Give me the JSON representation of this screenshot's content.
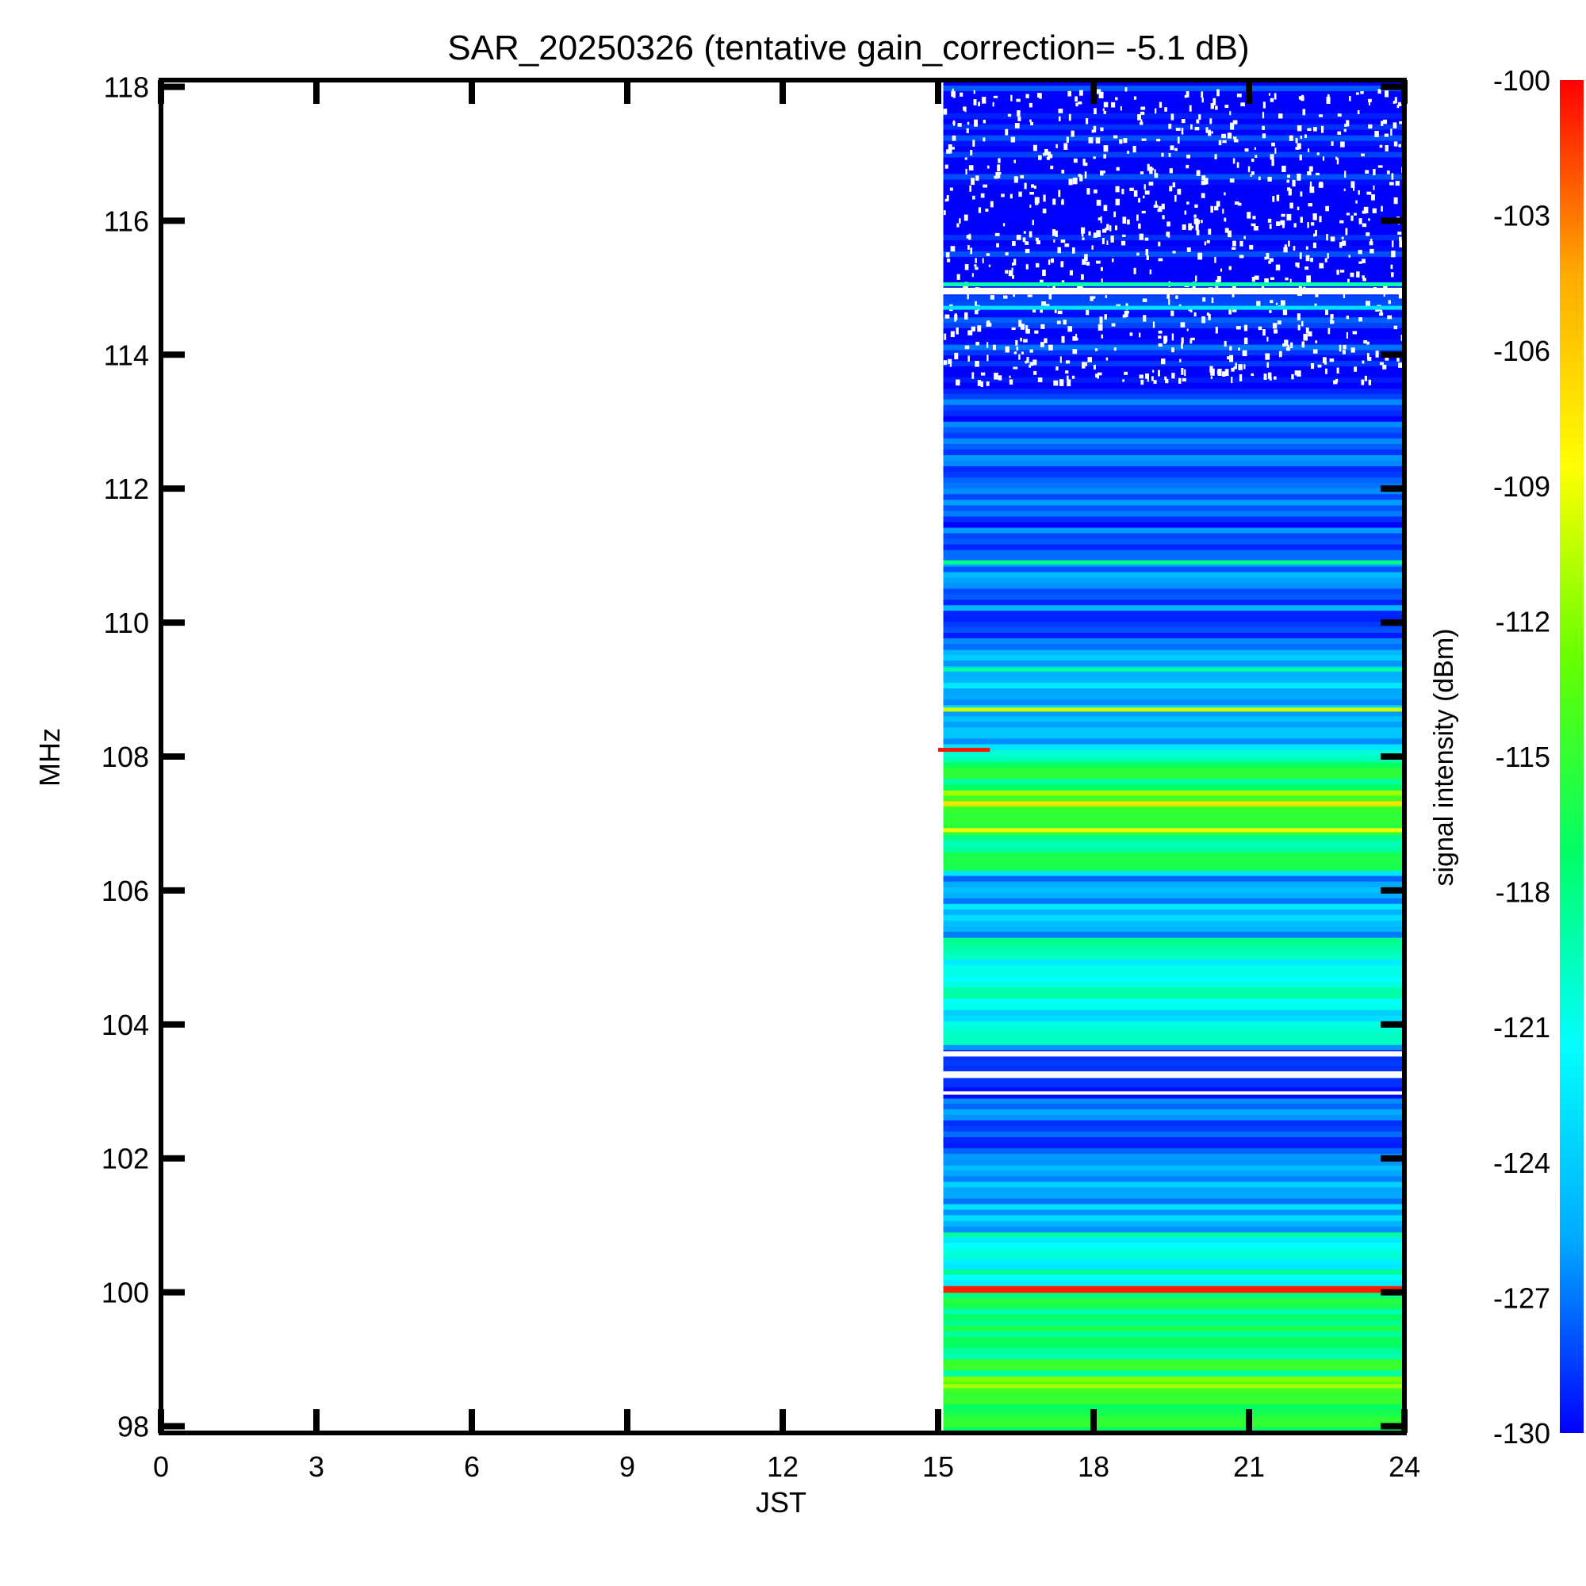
{
  "chart_data": {
    "type": "heatmap",
    "title": "SAR_20250326 (tentative gain_correction= -5.1 dB)",
    "xlabel": "JST",
    "ylabel": "MHz",
    "xlim": [
      0,
      24
    ],
    "ylim": [
      97.9,
      118.1
    ],
    "x_ticks": [
      "0",
      "3",
      "6",
      "9",
      "12",
      "15",
      "18",
      "21",
      "24"
    ],
    "x_tick_values": [
      0,
      3,
      6,
      9,
      12,
      15,
      18,
      21,
      24
    ],
    "y_ticks": [
      "98",
      "100",
      "102",
      "104",
      "106",
      "108",
      "110",
      "112",
      "114",
      "116",
      "118"
    ],
    "y_tick_values": [
      98,
      100,
      102,
      104,
      106,
      108,
      110,
      112,
      114,
      116,
      118
    ],
    "data_time_range": [
      15.1,
      24
    ],
    "colorbar": {
      "label": "signal intensity (dBm)",
      "range": [
        -130,
        -100
      ],
      "ticks": [
        "-100",
        "-103",
        "-106",
        "-109",
        "-112",
        "-115",
        "-118",
        "-121",
        "-124",
        "-127",
        "-130"
      ],
      "tick_values": [
        -100,
        -103,
        -106,
        -109,
        -112,
        -115,
        -118,
        -121,
        -124,
        -127,
        -130
      ],
      "colors": [
        "#0000ff",
        "#00aaff",
        "#00ffff",
        "#00ff66",
        "#66ff00",
        "#ffff00",
        "#ffaa00",
        "#ff0000"
      ]
    },
    "bands": [
      {
        "f0": 97.9,
        "f1": 98.5,
        "dbm": -115
      },
      {
        "f0": 98.5,
        "f1": 98.75,
        "dbm": -114
      },
      {
        "f0": 98.75,
        "f1": 100.0,
        "dbm": -117
      },
      {
        "f0": 100.0,
        "f1": 100.1,
        "dbm": -100.5
      },
      {
        "f0": 100.1,
        "f1": 100.9,
        "dbm": -121
      },
      {
        "f0": 100.9,
        "f1": 101.9,
        "dbm": -125
      },
      {
        "f0": 101.9,
        "f1": 102.9,
        "dbm": -127
      },
      {
        "f0": 102.9,
        "f1": 103.7,
        "dbm": -128.5
      },
      {
        "f0": 103.7,
        "f1": 104.3,
        "dbm": -122
      },
      {
        "f0": 104.3,
        "f1": 105.3,
        "dbm": -120
      },
      {
        "f0": 105.3,
        "f1": 106.3,
        "dbm": -125
      },
      {
        "f0": 106.3,
        "f1": 107.0,
        "dbm": -117
      },
      {
        "f0": 107.0,
        "f1": 107.5,
        "dbm": -113
      },
      {
        "f0": 107.5,
        "f1": 108.0,
        "dbm": -117
      },
      {
        "f0": 108.0,
        "f1": 108.1,
        "dbm": -118
      },
      {
        "f0": 108.1,
        "f1": 109.6,
        "dbm": -124
      },
      {
        "f0": 109.6,
        "f1": 111.0,
        "dbm": -127
      },
      {
        "f0": 111.0,
        "f1": 113.5,
        "dbm": -128.5
      },
      {
        "f0": 113.5,
        "f1": 114.8,
        "dbm": -129.5
      },
      {
        "f0": 114.8,
        "f1": 118.1,
        "dbm": -130
      }
    ],
    "lines": [
      {
        "freq": 108.1,
        "dbm": -100.5,
        "t0": 15.0,
        "t1": 16.0
      },
      {
        "freq": 108.7,
        "dbm": -110
      },
      {
        "freq": 110.9,
        "dbm": -118
      },
      {
        "freq": 109.3,
        "dbm": -119
      },
      {
        "freq": 114.7,
        "dbm": -123
      },
      {
        "freq": 115.05,
        "dbm": -119
      },
      {
        "freq": 107.3,
        "dbm": -107
      },
      {
        "freq": 106.9,
        "dbm": -109
      },
      {
        "freq": 98.6,
        "dbm": -111
      }
    ],
    "gaps": [
      {
        "f0": 103.2,
        "f1": 103.3
      },
      {
        "f0": 103.52,
        "f1": 103.6
      },
      {
        "f0": 102.95,
        "f1": 103.0
      },
      {
        "f0": 114.9,
        "f1": 115.0
      }
    ]
  }
}
